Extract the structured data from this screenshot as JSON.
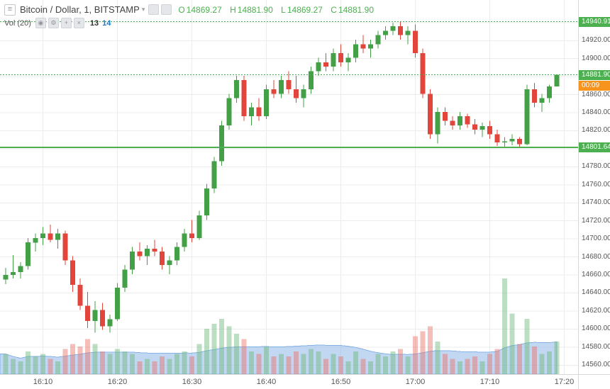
{
  "header": {
    "symbol_title": "Bitcoin / Dollar, 1, BITSTAMP",
    "ohlc": {
      "o_label": "O",
      "o_value": "14869.27",
      "h_label": "H",
      "h_value": "14881.90",
      "l_label": "L",
      "l_value": "14869.27",
      "c_label": "C",
      "c_value": "14881.90"
    },
    "volume": {
      "label": "Vol (20)",
      "value": "13",
      "ma_value": "14"
    }
  },
  "price_axis": {
    "tick_min": 14560,
    "tick_max": 14940,
    "tick_step": 20,
    "hidden_ticks": [
      14880,
      14800
    ],
    "badges": {
      "session_high": "14940.91",
      "last_price": "14881.90",
      "countdown": "00:09",
      "support": "14801.64"
    }
  },
  "time_axis": {
    "labels": [
      "16:10",
      "16:20",
      "16:30",
      "16:40",
      "16:50",
      "17:00",
      "17:10",
      "17:20"
    ]
  },
  "chart_data": {
    "type": "candlestick",
    "title": "Bitcoin / Dollar, 1, BITSTAMP",
    "exchange": "BITSTAMP",
    "interval_minutes": 1,
    "y_range": [
      14550,
      14965
    ],
    "grid": true,
    "levels": {
      "session_high": 14940.91,
      "last_price": 14881.9,
      "support": 14801.64
    },
    "last_ohlc": {
      "open": 14869.27,
      "high": 14881.9,
      "low": 14869.27,
      "close": 14881.9,
      "volume": 13,
      "volume_ma": 14
    },
    "volume_ma_period": 20,
    "candles": [
      [
        "16:05",
        14655,
        14668,
        14650,
        14660,
        8
      ],
      [
        "16:06",
        14660,
        14682,
        14656,
        14663,
        6
      ],
      [
        "16:07",
        14663,
        14674,
        14656,
        14670,
        5
      ],
      [
        "16:08",
        14670,
        14701,
        14666,
        14696,
        9
      ],
      [
        "16:09",
        14696,
        14706,
        14686,
        14701,
        7
      ],
      [
        "16:10",
        14701,
        14713,
        14693,
        14706,
        8
      ],
      [
        "16:11",
        14706,
        14716,
        14696,
        14699,
        6
      ],
      [
        "16:12",
        14699,
        14711,
        14689,
        14706,
        5
      ],
      [
        "16:13",
        14706,
        14709,
        14671,
        14676,
        10
      ],
      [
        "16:14",
        14676,
        14681,
        14641,
        14649,
        12
      ],
      [
        "16:15",
        14649,
        14656,
        14621,
        14626,
        11
      ],
      [
        "16:16",
        14626,
        14641,
        14601,
        14609,
        14
      ],
      [
        "16:17",
        14609,
        14631,
        14596,
        14621,
        12
      ],
      [
        "16:18",
        14621,
        14629,
        14599,
        14603,
        9
      ],
      [
        "16:19",
        14603,
        14616,
        14596,
        14611,
        8
      ],
      [
        "16:20",
        14611,
        14651,
        14609,
        14646,
        10
      ],
      [
        "16:21",
        14646,
        14671,
        14641,
        14666,
        9
      ],
      [
        "16:22",
        14666,
        14691,
        14661,
        14686,
        8
      ],
      [
        "16:23",
        14686,
        14696,
        14676,
        14681,
        5
      ],
      [
        "16:24",
        14681,
        14693,
        14671,
        14689,
        6
      ],
      [
        "16:25",
        14689,
        14699,
        14681,
        14686,
        5
      ],
      [
        "16:26",
        14686,
        14691,
        14666,
        14671,
        7
      ],
      [
        "16:27",
        14671,
        14681,
        14661,
        14676,
        6
      ],
      [
        "16:28",
        14676,
        14696,
        14671,
        14691,
        8
      ],
      [
        "16:29",
        14691,
        14711,
        14686,
        14706,
        9
      ],
      [
        "16:30",
        14706,
        14721,
        14696,
        14701,
        7
      ],
      [
        "16:31",
        14701,
        14731,
        14699,
        14726,
        12
      ],
      [
        "16:32",
        14726,
        14761,
        14721,
        14756,
        18
      ],
      [
        "16:33",
        14756,
        14791,
        14751,
        14786,
        20
      ],
      [
        "16:34",
        14786,
        14831,
        14781,
        14826,
        22
      ],
      [
        "16:35",
        14826,
        14861,
        14821,
        14856,
        19
      ],
      [
        "16:36",
        14856,
        14881,
        14851,
        14876,
        16
      ],
      [
        "16:37",
        14876,
        14881,
        14831,
        14836,
        14
      ],
      [
        "16:38",
        14836,
        14851,
        14826,
        14846,
        9
      ],
      [
        "16:39",
        14846,
        14856,
        14831,
        14836,
        8
      ],
      [
        "16:40",
        14836,
        14871,
        14833,
        14866,
        11
      ],
      [
        "16:41",
        14866,
        14876,
        14856,
        14861,
        7
      ],
      [
        "16:42",
        14861,
        14881,
        14856,
        14876,
        8
      ],
      [
        "16:43",
        14876,
        14886,
        14861,
        14866,
        7
      ],
      [
        "16:44",
        14866,
        14881,
        14851,
        14856,
        9
      ],
      [
        "16:45",
        14856,
        14871,
        14846,
        14866,
        8
      ],
      [
        "16:46",
        14866,
        14891,
        14861,
        14886,
        10
      ],
      [
        "16:47",
        14886,
        14901,
        14881,
        14896,
        9
      ],
      [
        "16:48",
        14896,
        14906,
        14886,
        14891,
        6
      ],
      [
        "16:49",
        14891,
        14911,
        14886,
        14906,
        8
      ],
      [
        "16:50",
        14906,
        14916,
        14891,
        14896,
        7
      ],
      [
        "16:51",
        14896,
        14906,
        14886,
        14901,
        5
      ],
      [
        "16:52",
        14901,
        14921,
        14896,
        14916,
        9
      ],
      [
        "16:53",
        14916,
        14926,
        14906,
        14911,
        6
      ],
      [
        "16:54",
        14911,
        14921,
        14901,
        14916,
        5
      ],
      [
        "16:55",
        14916,
        14931,
        14911,
        14926,
        8
      ],
      [
        "16:56",
        14926,
        14936,
        14921,
        14931,
        7
      ],
      [
        "16:57",
        14931,
        14940,
        14926,
        14936,
        9
      ],
      [
        "16:58",
        14936,
        14940.91,
        14921,
        14926,
        10
      ],
      [
        "16:59",
        14926,
        14936,
        14916,
        14931,
        7
      ],
      [
        "17:00",
        14931,
        14938,
        14901,
        14906,
        15
      ],
      [
        "17:01",
        14906,
        14911,
        14856,
        14861,
        17
      ],
      [
        "17:02",
        14861,
        14866,
        14811,
        14816,
        19
      ],
      [
        "17:03",
        14816,
        14846,
        14806,
        14841,
        13
      ],
      [
        "17:04",
        14841,
        14846,
        14826,
        14831,
        8
      ],
      [
        "17:05",
        14831,
        14836,
        14821,
        14826,
        6
      ],
      [
        "17:06",
        14826,
        14841,
        14821,
        14836,
        5
      ],
      [
        "17:07",
        14836,
        14839,
        14823,
        14827,
        6
      ],
      [
        "17:08",
        14827,
        14833,
        14816,
        14821,
        7
      ],
      [
        "17:09",
        14821,
        14829,
        14813,
        14825,
        5
      ],
      [
        "17:10",
        14825,
        14831,
        14811,
        14816,
        8
      ],
      [
        "17:11",
        14816,
        14821,
        14803,
        14807,
        10
      ],
      [
        "17:12",
        14807,
        14813,
        14801.64,
        14808,
        38
      ],
      [
        "17:13",
        14808,
        14816,
        14804,
        14811,
        24
      ],
      [
        "17:14",
        14811,
        14813,
        14801.64,
        14805,
        12
      ],
      [
        "17:15",
        14805,
        14871,
        14804,
        14866,
        22
      ],
      [
        "17:16",
        14866,
        14873,
        14846,
        14851,
        11
      ],
      [
        "17:17",
        14851,
        14861,
        14841,
        14856,
        8
      ],
      [
        "17:18",
        14856,
        14871,
        14851,
        14869,
        9
      ],
      [
        "17:19",
        14869.27,
        14881.9,
        14869.27,
        14881.9,
        13
      ]
    ]
  },
  "colors": {
    "up": "#43a047",
    "down": "#e2453b",
    "up_volume": "rgba(106,185,122,0.45)",
    "down_volume": "rgba(236,110,100,0.45)",
    "volume_ma_fill": "rgba(133,178,229,0.5)",
    "volume_ma_line": "#85b2e5",
    "level_green": "#4caf50",
    "badge_green": "#4caf50",
    "countdown_bg": "#f7941e",
    "grid": "#ececec",
    "axis_text": "#555555",
    "ohlc_green": "#4caf50",
    "vol_value": "#333333",
    "vol_ma_value": "#1e78c8"
  }
}
